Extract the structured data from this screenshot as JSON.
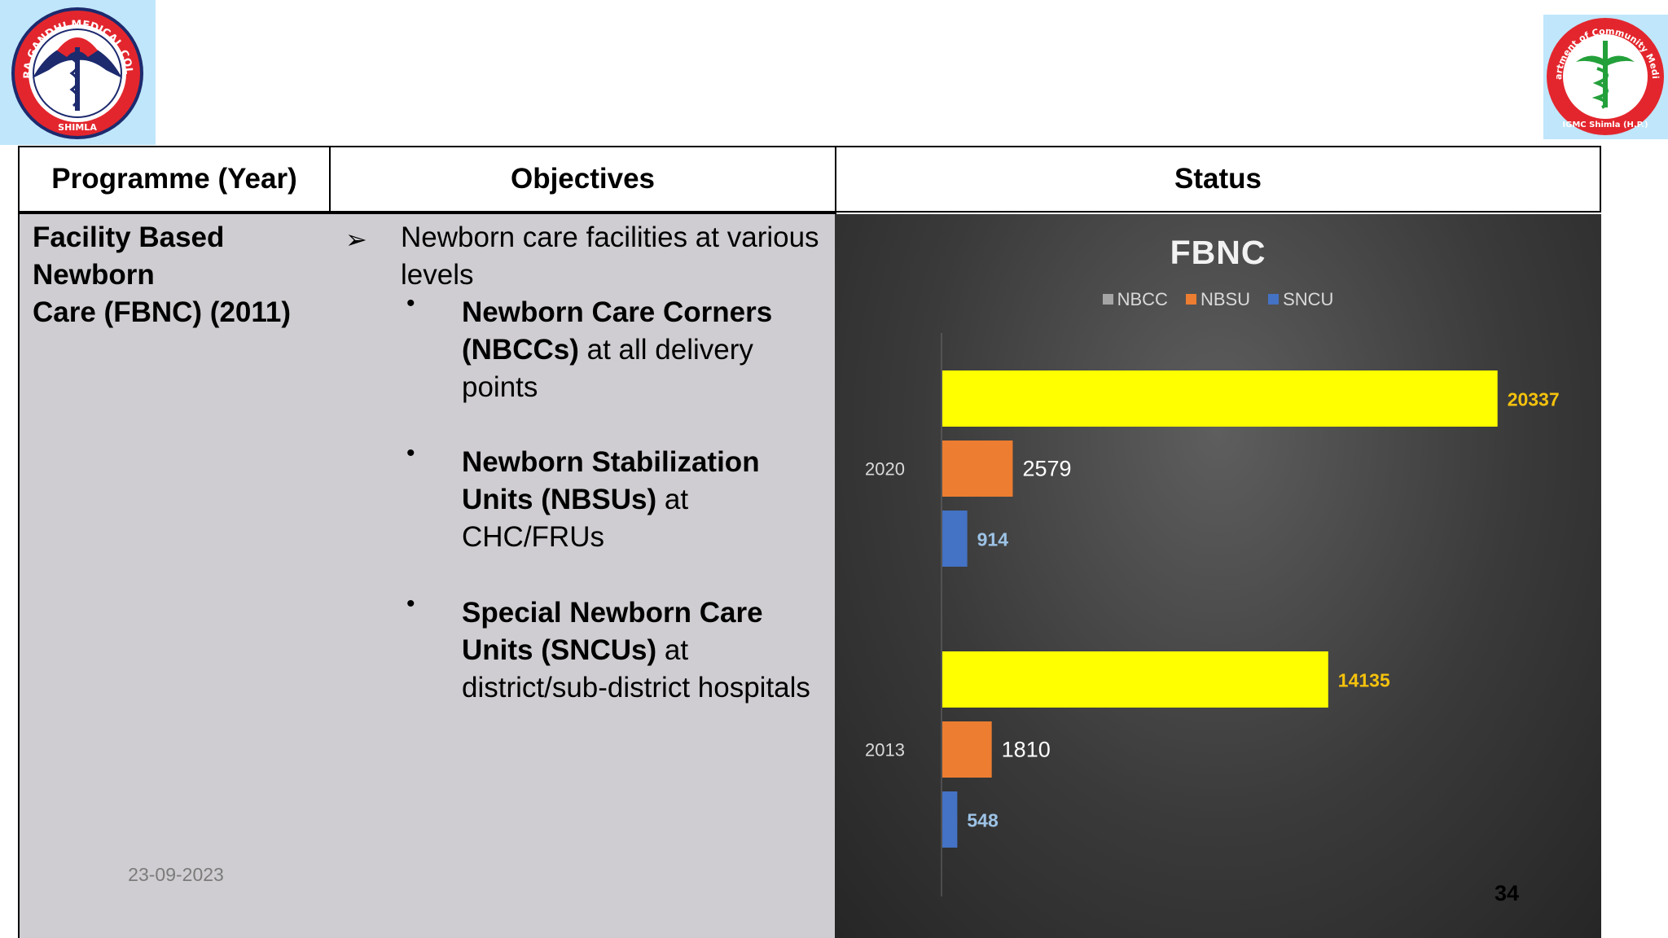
{
  "logos": {
    "left_text_top": "INDIRA GANDHI MEDICAL COLLEGE",
    "left_text_bottom": "SHIMLA",
    "right_text_top": "Department of Community Medicine",
    "right_text_bottom": "IGMC Shimla (H.P.)"
  },
  "table": {
    "headers": [
      "Programme (Year)",
      "Objectives",
      "Status"
    ],
    "programme": [
      "Facility Based",
      "Newborn",
      "Care (FBNC) (2011)"
    ],
    "objective_main": "Newborn care facilities at various levels",
    "bullets": [
      {
        "bold": "Newborn Care Corners (NBCCs)",
        "rest": " at all delivery points"
      },
      {
        "bold": "Newborn Stabilization Units (NBSUs)",
        "rest": " at CHC/FRUs"
      },
      {
        "bold": "Special Newborn Care Units (SNCUs)",
        "rest": " at district/sub-district hospitals"
      }
    ]
  },
  "footer": {
    "date": "23-09-2023",
    "page": "34"
  },
  "chart_data": {
    "type": "bar",
    "orientation": "horizontal",
    "title": "FBNC",
    "categories": [
      "2020",
      "2013"
    ],
    "series": [
      {
        "name": "NBCC",
        "values": [
          20337,
          14135
        ],
        "color": "#ffff00",
        "label_color": "#f4c20d"
      },
      {
        "name": "NBSU",
        "values": [
          2579,
          1810
        ],
        "color": "#ed7d31",
        "label_color": "#ffffff"
      },
      {
        "name": "SNCU",
        "values": [
          914,
          548
        ],
        "color": "#4472c4",
        "label_color": "#9dc3e6"
      }
    ],
    "legend_colors": [
      "#a5a5a5",
      "#ed7d31",
      "#4472c4"
    ],
    "legend_position": "top",
    "grid": false,
    "xlim": [
      0,
      25000
    ]
  }
}
